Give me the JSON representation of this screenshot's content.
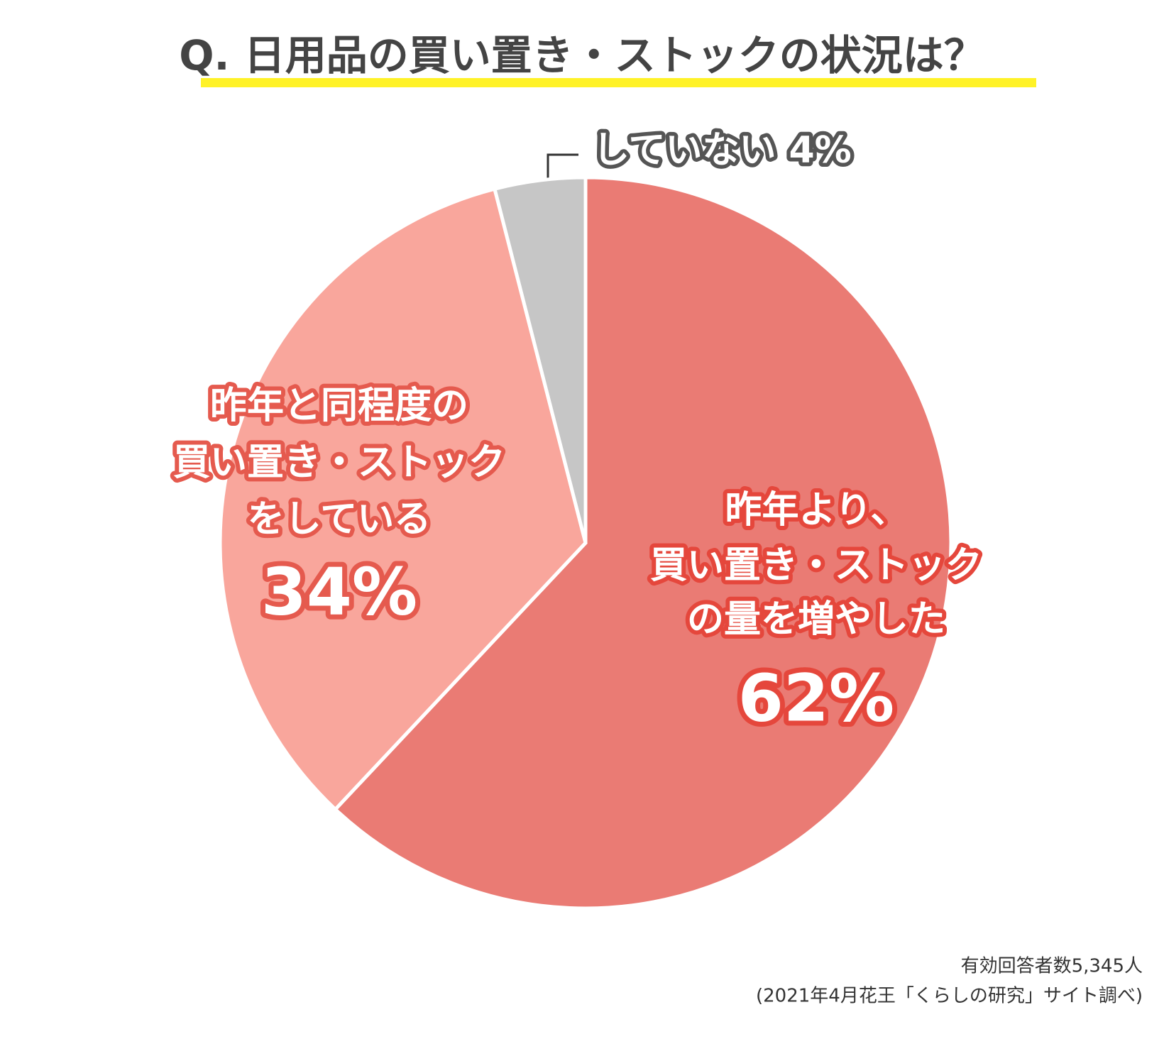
{
  "chart_data": {
    "type": "pie",
    "title": "Q. 日用品の買い置き・ストックの状況は？",
    "categories": [
      [
        "昨年より、",
        "買い置き・ストック",
        "の量を増やした"
      ],
      [
        "昨年と同程度の",
        "買い置き・ストック",
        "をしている"
      ],
      [
        "していない"
      ]
    ],
    "values": [
      62,
      34,
      4
    ],
    "value_labels": [
      "62%",
      "34%",
      "4%"
    ],
    "colors": [
      "#ea7b74",
      "#f9a69c",
      "#c6c6c6"
    ],
    "notes": [
      "有効回答者数5,345人",
      "(2021年4月花王「くらしの研究」サイト調べ)"
    ]
  }
}
